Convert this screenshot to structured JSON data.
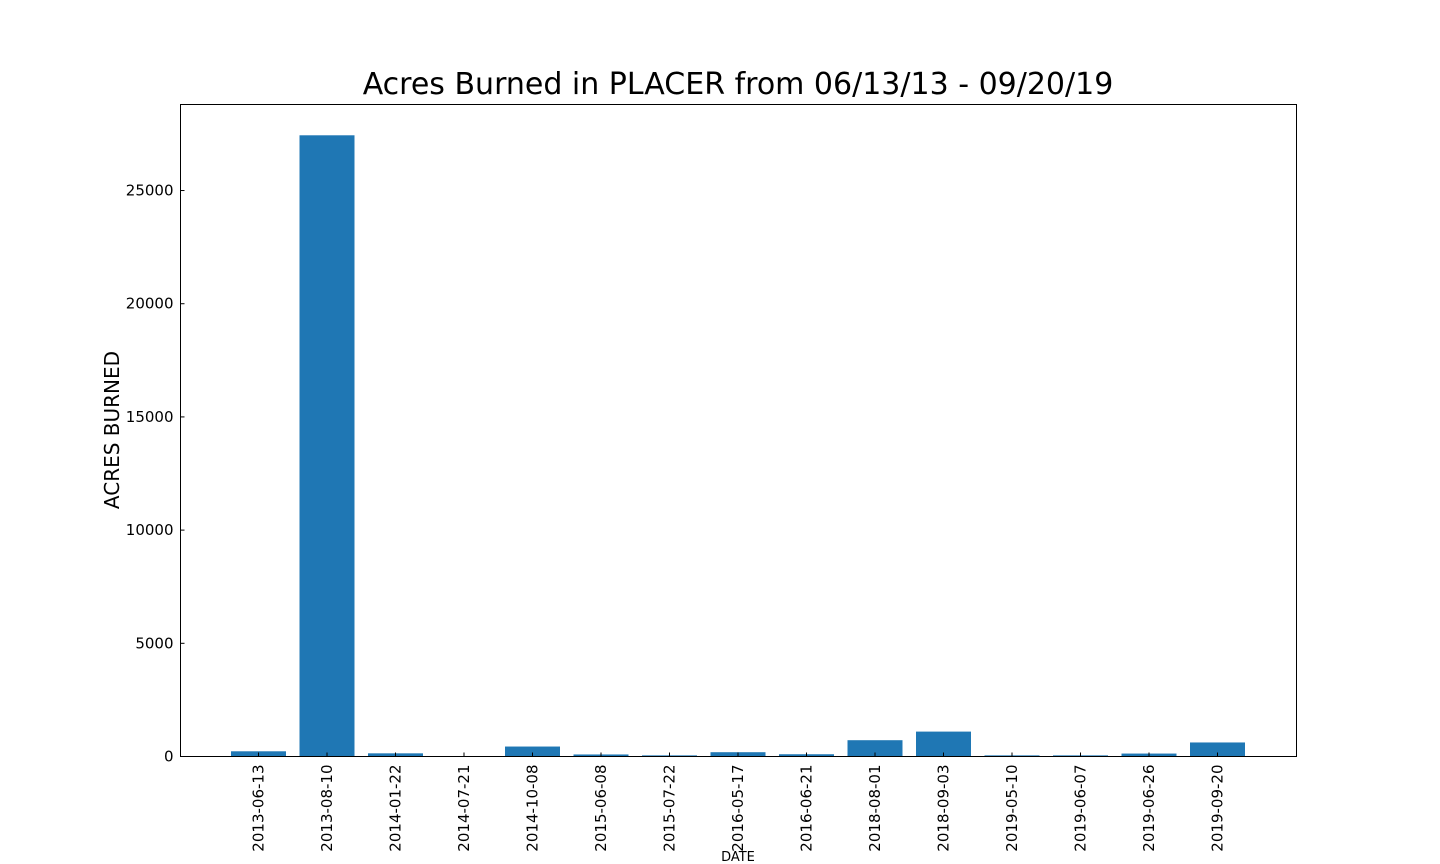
{
  "chart_data": {
    "type": "bar",
    "title": "Acres Burned in PLACER from 06/13/13 - 09/20/19",
    "xlabel": "DATE",
    "ylabel": "ACRES BURNED",
    "categories": [
      "2013-06-13",
      "2013-08-10",
      "2014-01-22",
      "2014-07-21",
      "2014-10-08",
      "2015-06-08",
      "2015-07-22",
      "2016-05-17",
      "2016-06-21",
      "2018-08-01",
      "2018-09-03",
      "2019-05-10",
      "2019-06-07",
      "2019-06-26",
      "2019-09-20"
    ],
    "values": [
      230,
      27440,
      140,
      5,
      440,
      90,
      50,
      190,
      100,
      720,
      1100,
      50,
      50,
      130,
      620
    ],
    "ylim": [
      0,
      28800
    ],
    "yticks": [
      0,
      5000,
      10000,
      15000,
      20000,
      25000
    ],
    "bar_color": "#1f77b4",
    "grid": false,
    "legend": "none"
  }
}
